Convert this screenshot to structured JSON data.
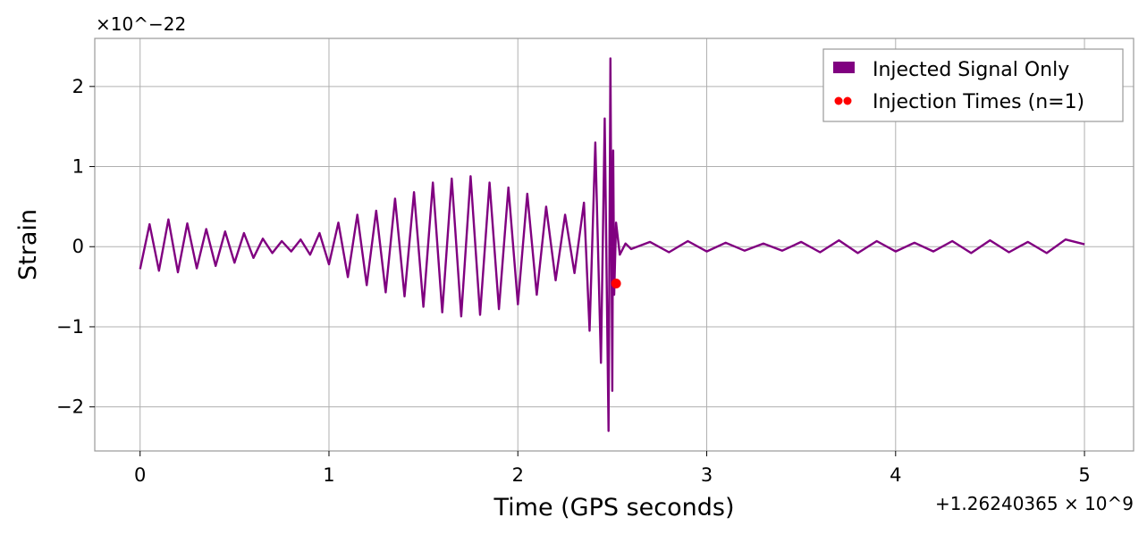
{
  "chart_data": {
    "type": "line",
    "title": "",
    "xlabel": "Time (GPS seconds)",
    "ylabel": "Strain",
    "x_offset_label": "+1.26240365 × 10^9",
    "y_scale_label": "×10^−22",
    "xlim": [
      -0.24,
      5.26
    ],
    "ylim": [
      -2.55,
      2.6
    ],
    "x_ticks": [
      0,
      1,
      2,
      3,
      4,
      5
    ],
    "x_tick_labels": [
      "0",
      "1",
      "2",
      "3",
      "4",
      "5"
    ],
    "y_ticks": [
      -2,
      -1,
      0,
      1,
      2
    ],
    "y_tick_labels": [
      "−2",
      "−1",
      "0",
      "1",
      "2"
    ],
    "grid": true,
    "legend_position": "top-right",
    "series": [
      {
        "name": "Injected Signal Only",
        "kind": "line",
        "color": "#800080",
        "x": [
          0.0,
          0.05,
          0.1,
          0.15,
          0.2,
          0.25,
          0.3,
          0.35,
          0.4,
          0.45,
          0.5,
          0.55,
          0.6,
          0.65,
          0.7,
          0.75,
          0.8,
          0.85,
          0.9,
          0.95,
          1.0,
          1.05,
          1.1,
          1.15,
          1.2,
          1.25,
          1.3,
          1.35,
          1.4,
          1.45,
          1.5,
          1.55,
          1.6,
          1.65,
          1.7,
          1.75,
          1.8,
          1.85,
          1.9,
          1.95,
          2.0,
          2.05,
          2.1,
          2.15,
          2.2,
          2.25,
          2.3,
          2.35,
          2.38,
          2.41,
          2.44,
          2.46,
          2.48,
          2.49,
          2.5,
          2.505,
          2.51,
          2.52,
          2.54,
          2.57,
          2.6,
          2.7,
          2.8,
          2.9,
          3.0,
          3.1,
          3.2,
          3.3,
          3.4,
          3.5,
          3.6,
          3.7,
          3.8,
          3.9,
          4.0,
          4.1,
          4.2,
          4.3,
          4.4,
          4.5,
          4.6,
          4.7,
          4.8,
          4.9,
          5.0
        ],
        "y": [
          -0.28,
          0.28,
          -0.3,
          0.34,
          -0.32,
          0.29,
          -0.27,
          0.22,
          -0.24,
          0.19,
          -0.2,
          0.17,
          -0.14,
          0.1,
          -0.08,
          0.07,
          -0.06,
          0.09,
          -0.1,
          0.17,
          -0.22,
          0.3,
          -0.38,
          0.4,
          -0.48,
          0.45,
          -0.57,
          0.6,
          -0.62,
          0.68,
          -0.75,
          0.8,
          -0.82,
          0.85,
          -0.87,
          0.88,
          -0.85,
          0.8,
          -0.78,
          0.74,
          -0.72,
          0.66,
          -0.6,
          0.5,
          -0.42,
          0.4,
          -0.33,
          0.55,
          -1.05,
          1.3,
          -1.45,
          1.6,
          -2.3,
          2.35,
          -1.8,
          1.2,
          -0.6,
          0.3,
          -0.1,
          0.04,
          -0.03,
          0.06,
          -0.07,
          0.07,
          -0.06,
          0.05,
          -0.05,
          0.04,
          -0.05,
          0.06,
          -0.07,
          0.08,
          -0.08,
          0.07,
          -0.06,
          0.05,
          -0.06,
          0.07,
          -0.08,
          0.08,
          -0.07,
          0.06,
          -0.08,
          0.09,
          0.03
        ]
      },
      {
        "name": "Injection Times (n=1)",
        "kind": "scatter",
        "color": "#ff0000",
        "x": [
          2.52
        ],
        "y": [
          -0.46
        ]
      }
    ]
  }
}
